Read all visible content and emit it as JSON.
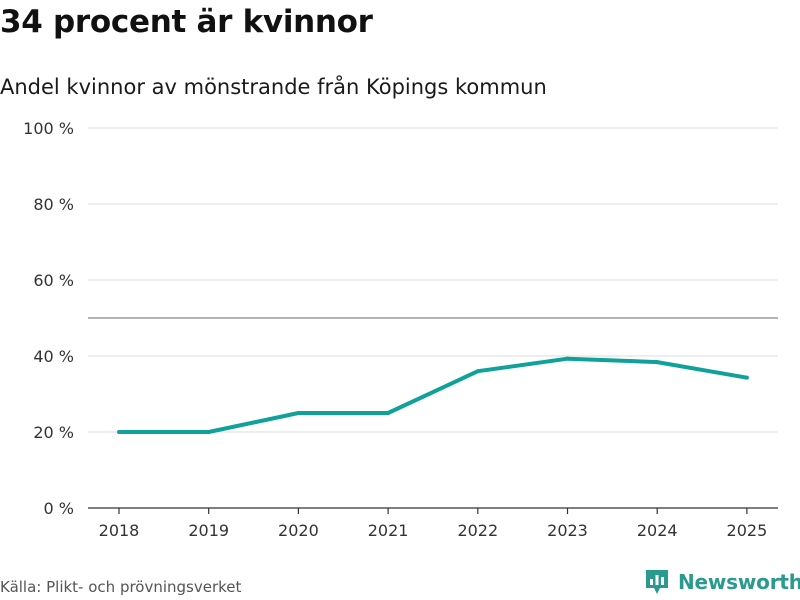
{
  "header": {
    "title": "34 procent är kvinnor",
    "subtitle": "Andel kvinnor av mönstrande från Köpings kommun"
  },
  "footer": {
    "source": "Källa: Plikt- och prövningsverket",
    "brand": "Newsworthy"
  },
  "colors": {
    "line": "#0fa19a",
    "grid": "#dddddd",
    "reference": "#888888",
    "axis": "#333333",
    "brand": "#2a9a8f"
  },
  "chart_data": {
    "type": "line",
    "title": "34 procent är kvinnor",
    "subtitle": "Andel kvinnor av mönstrande från Köpings kommun",
    "x": [
      "2018",
      "2019",
      "2020",
      "2021",
      "2022",
      "2023",
      "2024",
      "2025"
    ],
    "series": [
      {
        "name": "Andel kvinnor",
        "values": [
          20,
          20,
          25,
          25,
          36,
          39.3,
          38.4,
          34.3
        ]
      }
    ],
    "ylim": [
      0,
      100
    ],
    "yticks": [
      0,
      20,
      40,
      60,
      80,
      100
    ],
    "ytick_labels": [
      "0 %",
      "20 %",
      "40 %",
      "60 %",
      "80 %",
      "100 %"
    ],
    "reference_line": 50,
    "grid": true,
    "xlabel": "",
    "ylabel": ""
  }
}
